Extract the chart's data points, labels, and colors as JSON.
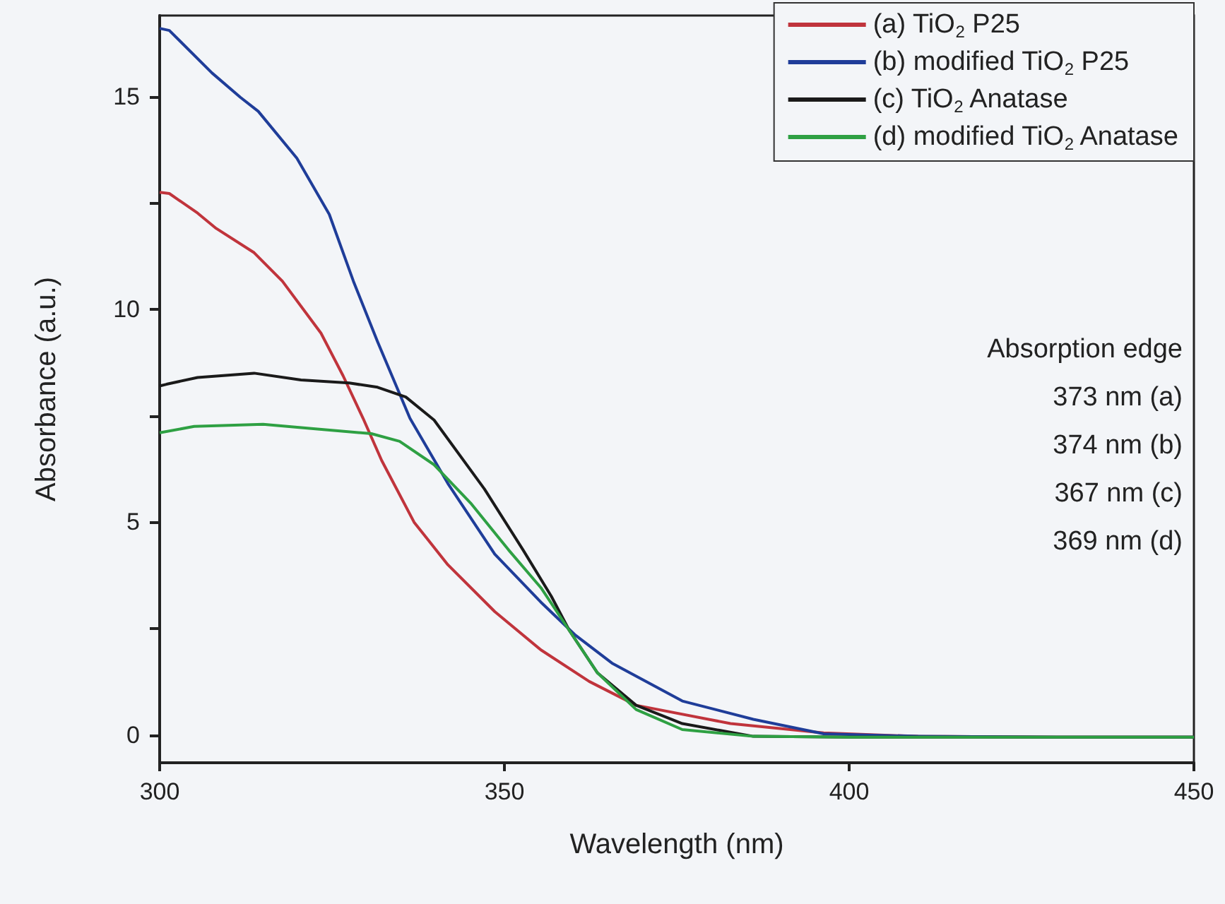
{
  "chart_data": {
    "type": "line",
    "xlabel": "Wavelength (nm)",
    "ylabel": "Absorbance (a.u.)",
    "xlim": [
      300,
      450
    ],
    "xticks": [
      300,
      350,
      400,
      450
    ],
    "ylim": [
      -0.65,
      16.9
    ],
    "yticks": [
      0,
      {
        "value": 2.5,
        "label": null
      },
      5,
      {
        "value": 7.5,
        "label": null
      },
      10,
      {
        "value": 12.5,
        "label": null
      },
      15
    ],
    "grid": false,
    "legend": "top right",
    "marker": "none",
    "line_style": "solid",
    "annotations": [
      "Absorption edge",
      "373 nm (a)",
      "374 nm (b)",
      "367 nm (c)",
      "369 nm (d)"
    ],
    "series": [
      {
        "name": "(a) TiO$_{2}$ P25",
        "color": "#c0343c",
        "x": [
          300,
          301.4,
          305.5,
          308.2,
          313.7,
          317.8,
          323.4,
          326.6,
          329.5,
          332.2,
          336.9,
          341.8,
          348.6,
          355.3,
          362.3,
          369.1,
          382.8,
          396.3,
          410,
          430,
          450
        ],
        "values": [
          12.75,
          12.72,
          12.26,
          11.9,
          11.33,
          10.66,
          9.44,
          8.44,
          7.44,
          6.45,
          5.0,
          4.0,
          2.9,
          2.0,
          1.26,
          0.7,
          0.27,
          0.05,
          -0.03,
          -0.05,
          -0.05
        ]
      },
      {
        "name": "(b) modified TiO$_{2}$ P25",
        "color": "#1f3d99",
        "x": [
          300,
          301.4,
          307.6,
          311.7,
          314.3,
          319.9,
          324.6,
          328.1,
          331.6,
          336.3,
          341.8,
          348.6,
          355.3,
          360.2,
          365.6,
          375.8,
          386.1,
          396.3,
          410,
          430,
          450
        ],
        "values": [
          16.6,
          16.55,
          15.55,
          14.98,
          14.65,
          13.55,
          12.23,
          10.66,
          9.24,
          7.44,
          5.91,
          4.25,
          3.12,
          2.36,
          1.69,
          0.8,
          0.37,
          0.03,
          -0.03,
          -0.05,
          -0.05
        ]
      },
      {
        "name": "(c) TiO$_{2}$ Anatase",
        "color": "#1a1a1a",
        "x": [
          300,
          301,
          305.5,
          313.7,
          320.5,
          327.5,
          331.6,
          335.7,
          339.8,
          347.1,
          352.7,
          356.8,
          359.4,
          363.5,
          369.1,
          375.8,
          386.1,
          400,
          420,
          450
        ],
        "values": [
          8.2,
          8.24,
          8.4,
          8.5,
          8.34,
          8.27,
          8.17,
          7.94,
          7.4,
          5.78,
          4.35,
          3.26,
          2.46,
          1.46,
          0.7,
          0.27,
          -0.03,
          -0.05,
          -0.05,
          -0.05
        ]
      },
      {
        "name": "(d) modified TiO$_{2}$ Anatase",
        "color": "#2ea043",
        "x": [
          300,
          305,
          315,
          322,
          330.7,
          334.8,
          339.8,
          345.1,
          350.6,
          355.3,
          359.4,
          363.5,
          369.1,
          375.8,
          386.1,
          400,
          420,
          450
        ],
        "values": [
          7.1,
          7.25,
          7.3,
          7.2,
          7.08,
          6.9,
          6.35,
          5.45,
          4.35,
          3.46,
          2.46,
          1.46,
          0.6,
          0.13,
          -0.03,
          -0.05,
          -0.05,
          -0.05
        ]
      }
    ]
  }
}
